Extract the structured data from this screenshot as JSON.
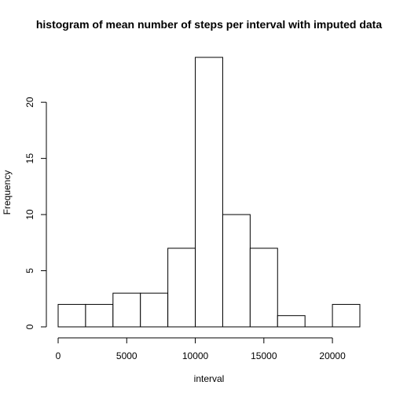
{
  "chart_data": {
    "type": "bar",
    "title": "histogram of mean number of steps per interval with imputed data",
    "xlabel": "interval",
    "ylabel": "Frequency",
    "bins": [
      {
        "start": 0,
        "end": 2000,
        "count": 2
      },
      {
        "start": 2000,
        "end": 4000,
        "count": 2
      },
      {
        "start": 4000,
        "end": 6000,
        "count": 3
      },
      {
        "start": 6000,
        "end": 8000,
        "count": 3
      },
      {
        "start": 8000,
        "end": 10000,
        "count": 7
      },
      {
        "start": 10000,
        "end": 12000,
        "count": 24
      },
      {
        "start": 12000,
        "end": 14000,
        "count": 10
      },
      {
        "start": 14000,
        "end": 16000,
        "count": 7
      },
      {
        "start": 16000,
        "end": 18000,
        "count": 1
      },
      {
        "start": 18000,
        "end": 20000,
        "count": 0
      },
      {
        "start": 20000,
        "end": 22000,
        "count": 2
      }
    ],
    "xticks": [
      0,
      5000,
      10000,
      15000,
      20000
    ],
    "yticks": [
      0,
      5,
      10,
      15,
      20
    ],
    "xlim": [
      0,
      22000
    ],
    "ylim": [
      0,
      24
    ],
    "grid": false
  }
}
